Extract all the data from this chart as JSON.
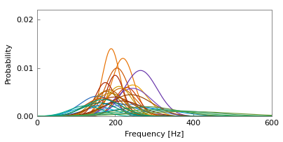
{
  "xlabel": "Frequency [Hz]",
  "ylabel": "Probability",
  "xlim": [
    0,
    600
  ],
  "ylim": [
    0,
    0.022
  ],
  "yticks": [
    0,
    0.01,
    0.02
  ],
  "xticks": [
    0,
    200,
    400,
    600
  ],
  "curves": [
    {
      "mean": 190,
      "std": 22,
      "amp": 0.014,
      "color": "#E87000"
    },
    {
      "mean": 220,
      "std": 28,
      "amp": 0.012,
      "color": "#E87000"
    },
    {
      "mean": 245,
      "std": 38,
      "amp": 0.0065,
      "color": "#E8A000"
    },
    {
      "mean": 205,
      "std": 30,
      "amp": 0.01,
      "color": "#CC5500"
    },
    {
      "mean": 175,
      "std": 25,
      "amp": 0.007,
      "color": "#AA2200"
    },
    {
      "mean": 200,
      "std": 22,
      "amp": 0.0085,
      "color": "#AA2200"
    },
    {
      "mean": 230,
      "std": 30,
      "amp": 0.006,
      "color": "#CC3300"
    },
    {
      "mean": 155,
      "std": 45,
      "amp": 0.0042,
      "color": "#2266BB"
    },
    {
      "mean": 195,
      "std": 58,
      "amp": 0.0028,
      "color": "#2266BB"
    },
    {
      "mean": 235,
      "std": 62,
      "amp": 0.0025,
      "color": "#4488CC"
    },
    {
      "mean": 145,
      "std": 50,
      "amp": 0.0022,
      "color": "#00AACC"
    },
    {
      "mean": 265,
      "std": 85,
      "amp": 0.0018,
      "color": "#0099CC"
    },
    {
      "mean": 245,
      "std": 48,
      "amp": 0.0058,
      "color": "#7744BB"
    },
    {
      "mean": 265,
      "std": 42,
      "amp": 0.0095,
      "color": "#6633AA"
    },
    {
      "mean": 188,
      "std": 40,
      "amp": 0.0048,
      "color": "#BB8800"
    },
    {
      "mean": 210,
      "std": 32,
      "amp": 0.0062,
      "color": "#CC9900"
    },
    {
      "mean": 178,
      "std": 36,
      "amp": 0.0052,
      "color": "#AA7700"
    },
    {
      "mean": 168,
      "std": 45,
      "amp": 0.0038,
      "color": "#CC4400"
    },
    {
      "mean": 198,
      "std": 50,
      "amp": 0.004,
      "color": "#993300"
    },
    {
      "mean": 218,
      "std": 52,
      "amp": 0.0032,
      "color": "#882200"
    },
    {
      "mean": 185,
      "std": 35,
      "amp": 0.0055,
      "color": "#BB5500"
    },
    {
      "mean": 215,
      "std": 38,
      "amp": 0.0058,
      "color": "#CC6600"
    },
    {
      "mean": 240,
      "std": 55,
      "amp": 0.0045,
      "color": "#994400"
    },
    {
      "mean": 280,
      "std": 80,
      "amp": 0.002,
      "color": "#558833"
    },
    {
      "mean": 380,
      "std": 130,
      "amp": 0.001,
      "color": "#669933"
    },
    {
      "mean": 125,
      "std": 42,
      "amp": 0.0022,
      "color": "#00AA88"
    },
    {
      "mean": 160,
      "std": 45,
      "amp": 0.0028,
      "color": "#008866"
    },
    {
      "mean": 340,
      "std": 110,
      "amp": 0.0012,
      "color": "#449966"
    },
    {
      "mean": 170,
      "std": 48,
      "amp": 0.0035,
      "color": "#009977"
    },
    {
      "mean": 300,
      "std": 100,
      "amp": 0.0014,
      "color": "#33AA55"
    }
  ],
  "figsize": [
    4.04,
    2.04
  ],
  "dpi": 100
}
